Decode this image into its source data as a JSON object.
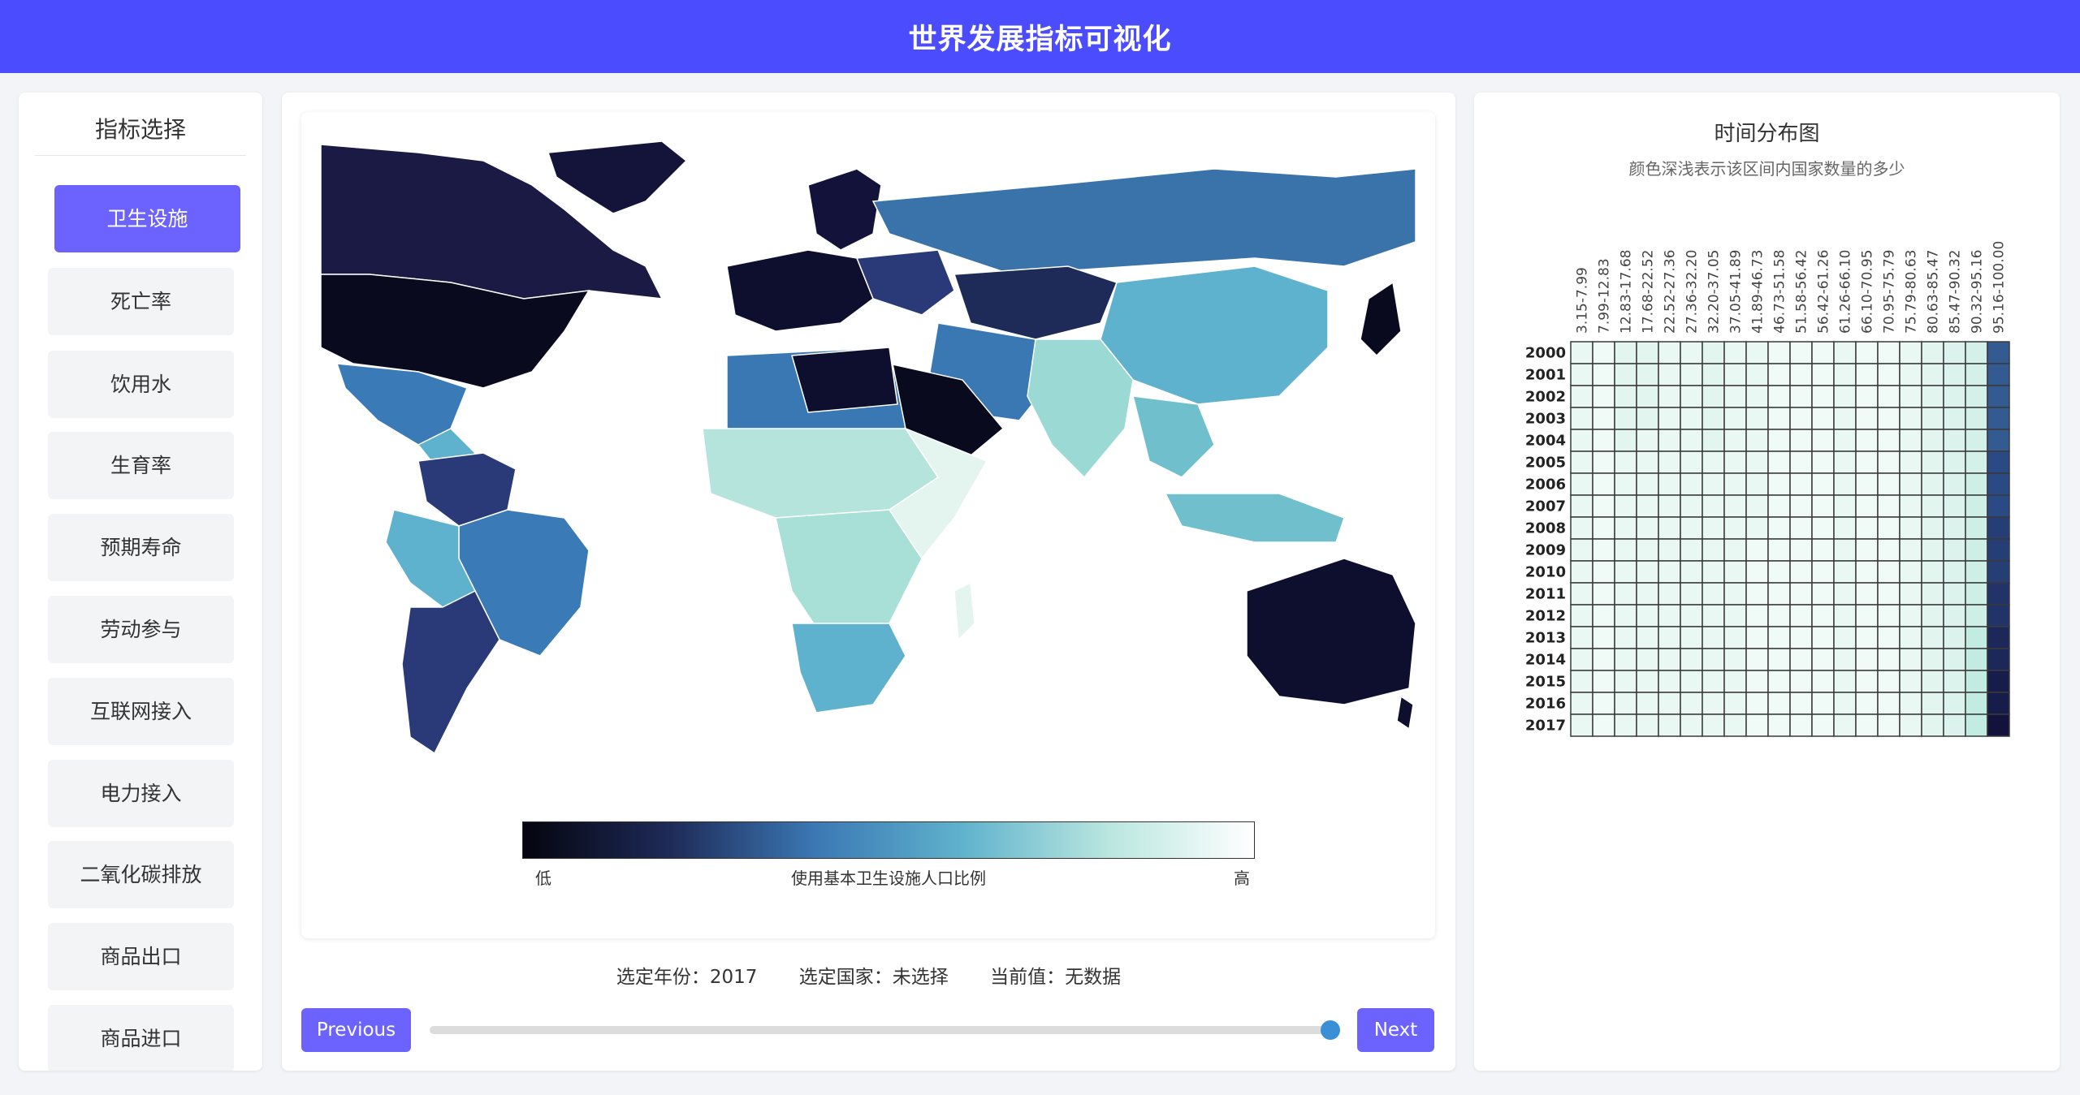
{
  "header": {
    "title": "世界发展指标可视化"
  },
  "sidebar": {
    "title": "指标选择",
    "items": [
      {
        "label": "卫生设施",
        "active": true
      },
      {
        "label": "死亡率"
      },
      {
        "label": "饮用水"
      },
      {
        "label": "生育率"
      },
      {
        "label": "预期寿命"
      },
      {
        "label": "劳动参与"
      },
      {
        "label": "互联网接入"
      },
      {
        "label": "电力接入"
      },
      {
        "label": "二氧化碳排放"
      },
      {
        "label": "商品出口"
      },
      {
        "label": "商品进口"
      }
    ]
  },
  "map": {
    "legend": {
      "low": "低",
      "high": "高",
      "label": "使用基本卫生设施人口比例"
    },
    "colors": {
      "ocean": "#ffffff",
      "border": "#ffffff"
    }
  },
  "status": {
    "year": "选定年份：2017",
    "country": "选定国家：未选择",
    "value": "当前值：无数据"
  },
  "controls": {
    "prev_label": "Previous",
    "next_label": "Next",
    "slider_value": 1.0
  },
  "heatmap_panel": {
    "title": "时间分布图",
    "subtitle": "颜色深浅表示该区间内国家数量的多少"
  },
  "chart_data": {
    "type": "heatmap",
    "x_categories": [
      "3.15-7.99",
      "7.99-12.83",
      "12.83-17.68",
      "17.68-22.52",
      "22.52-27.36",
      "27.36-32.20",
      "32.20-37.05",
      "37.05-41.89",
      "41.89-46.73",
      "46.73-51.58",
      "51.58-56.42",
      "56.42-61.26",
      "61.26-66.10",
      "66.10-70.95",
      "70.95-75.79",
      "75.79-80.63",
      "80.63-85.47",
      "85.47-90.32",
      "90.32-95.16",
      "95.16-100.00"
    ],
    "y_categories": [
      "2000",
      "2001",
      "2002",
      "2003",
      "2004",
      "2005",
      "2006",
      "2007",
      "2008",
      "2009",
      "2010",
      "2011",
      "2012",
      "2013",
      "2014",
      "2015",
      "2016",
      "2017"
    ],
    "values": [
      [
        3,
        2,
        4,
        4,
        3,
        3,
        4,
        3,
        3,
        2,
        2,
        2,
        3,
        2,
        2,
        3,
        4,
        5,
        6,
        18
      ],
      [
        3,
        2,
        4,
        4,
        3,
        3,
        4,
        3,
        3,
        2,
        2,
        2,
        3,
        2,
        2,
        3,
        4,
        5,
        6,
        18
      ],
      [
        3,
        2,
        4,
        4,
        3,
        3,
        4,
        3,
        3,
        2,
        2,
        2,
        3,
        2,
        2,
        3,
        4,
        5,
        6,
        18
      ],
      [
        3,
        2,
        4,
        4,
        3,
        3,
        4,
        3,
        3,
        2,
        2,
        2,
        3,
        2,
        2,
        3,
        4,
        5,
        6,
        18
      ],
      [
        3,
        2,
        4,
        3,
        3,
        3,
        4,
        3,
        3,
        2,
        2,
        2,
        3,
        2,
        2,
        3,
        4,
        5,
        6,
        18
      ],
      [
        3,
        2,
        3,
        3,
        3,
        3,
        3,
        3,
        3,
        2,
        2,
        2,
        3,
        2,
        2,
        3,
        4,
        5,
        6,
        19
      ],
      [
        3,
        2,
        3,
        3,
        3,
        3,
        3,
        3,
        3,
        2,
        2,
        2,
        3,
        2,
        2,
        3,
        4,
        5,
        7,
        19
      ],
      [
        3,
        2,
        3,
        3,
        3,
        3,
        3,
        3,
        3,
        2,
        2,
        2,
        3,
        2,
        2,
        3,
        4,
        5,
        7,
        19
      ],
      [
        3,
        2,
        3,
        3,
        3,
        3,
        3,
        3,
        3,
        2,
        2,
        2,
        3,
        2,
        2,
        3,
        4,
        5,
        7,
        20
      ],
      [
        3,
        2,
        3,
        3,
        3,
        3,
        3,
        3,
        2,
        2,
        2,
        2,
        3,
        2,
        2,
        3,
        4,
        5,
        7,
        20
      ],
      [
        3,
        2,
        3,
        3,
        3,
        3,
        3,
        3,
        2,
        2,
        2,
        2,
        3,
        2,
        2,
        3,
        4,
        5,
        7,
        20
      ],
      [
        3,
        2,
        3,
        3,
        3,
        3,
        3,
        3,
        2,
        2,
        2,
        2,
        3,
        2,
        2,
        3,
        4,
        5,
        7,
        21
      ],
      [
        3,
        2,
        3,
        3,
        3,
        3,
        3,
        3,
        2,
        2,
        2,
        2,
        3,
        2,
        2,
        3,
        4,
        5,
        7,
        21
      ],
      [
        3,
        2,
        3,
        3,
        3,
        3,
        3,
        3,
        2,
        2,
        2,
        2,
        3,
        2,
        2,
        3,
        4,
        5,
        8,
        22
      ],
      [
        3,
        2,
        3,
        3,
        3,
        3,
        3,
        3,
        2,
        2,
        2,
        2,
        3,
        2,
        2,
        3,
        4,
        5,
        8,
        22
      ],
      [
        3,
        2,
        3,
        3,
        3,
        3,
        3,
        3,
        2,
        2,
        2,
        2,
        3,
        2,
        2,
        3,
        4,
        5,
        8,
        23
      ],
      [
        3,
        2,
        3,
        3,
        3,
        3,
        3,
        3,
        2,
        2,
        2,
        2,
        3,
        2,
        2,
        3,
        4,
        5,
        8,
        23
      ],
      [
        3,
        2,
        3,
        3,
        3,
        3,
        3,
        3,
        2,
        2,
        2,
        2,
        3,
        2,
        2,
        3,
        4,
        5,
        8,
        24
      ]
    ]
  }
}
